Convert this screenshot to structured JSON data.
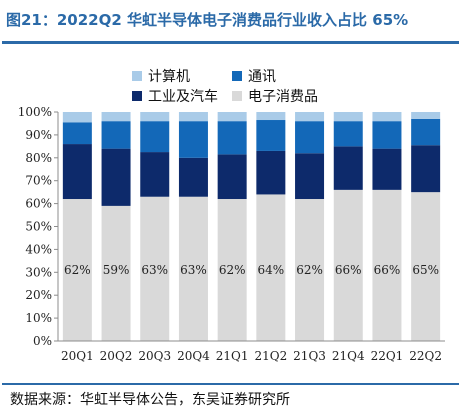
{
  "title": "图21：2022Q2 华虹半导体电子消费品行业收入占比 65%",
  "source": "数据来源：华虹半导体公告，东吴证券研究所",
  "colors": {
    "title": "#2b6aa8",
    "computer": "#a9cbe8",
    "communication": "#1368b8",
    "industrial_auto": "#0d2a6b",
    "consumer": "#d9d9d9",
    "axis": "#8c8c8c"
  },
  "chart_data": {
    "type": "bar",
    "stacked": true,
    "categories": [
      "20Q1",
      "20Q2",
      "20Q3",
      "20Q4",
      "21Q1",
      "21Q2",
      "21Q3",
      "21Q4",
      "22Q1",
      "22Q2"
    ],
    "ylim": [
      0,
      100
    ],
    "yticks": [
      "0%",
      "10%",
      "20%",
      "30%",
      "40%",
      "50%",
      "60%",
      "70%",
      "80%",
      "90%",
      "100%"
    ],
    "legend_position": "top",
    "series": [
      {
        "name": "电子消费品",
        "color_key": "consumer",
        "values": [
          62,
          59,
          63,
          63,
          62,
          64,
          62,
          66,
          66,
          65
        ],
        "labels": [
          "62%",
          "59%",
          "63%",
          "63%",
          "62%",
          "64%",
          "62%",
          "66%",
          "66%",
          "65%"
        ]
      },
      {
        "name": "工业及汽车",
        "color_key": "industrial_auto",
        "values": [
          24,
          25,
          19.5,
          17,
          19.5,
          19,
          20,
          19,
          18,
          20.5
        ]
      },
      {
        "name": "通讯",
        "color_key": "communication",
        "values": [
          9.5,
          12,
          13.5,
          16,
          14.5,
          13.5,
          14,
          11,
          12,
          11.5
        ]
      },
      {
        "name": "计算机",
        "color_key": "computer",
        "values": [
          4.5,
          4,
          4,
          4,
          4,
          3.5,
          4,
          4,
          4,
          3
        ]
      }
    ],
    "legend": [
      {
        "name": "计算机",
        "color_key": "computer"
      },
      {
        "name": "通讯",
        "color_key": "communication"
      },
      {
        "name": "工业及汽车",
        "color_key": "industrial_auto"
      },
      {
        "name": "电子消费品",
        "color_key": "consumer"
      }
    ]
  }
}
